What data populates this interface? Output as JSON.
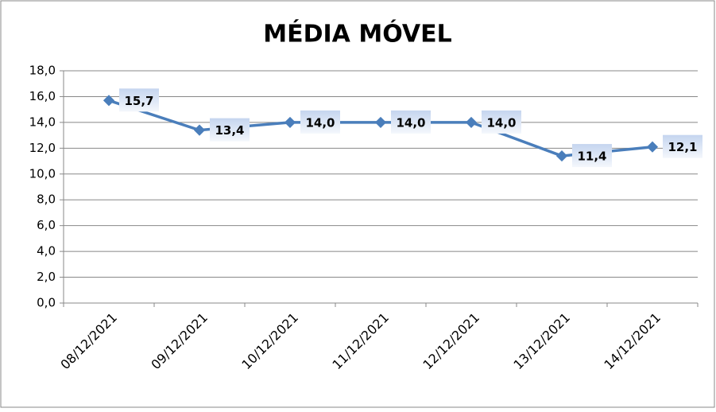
{
  "chart_data": {
    "type": "line",
    "title": "MÉDIA MÓVEL",
    "categories": [
      "08/12/2021",
      "09/12/2021",
      "10/12/2021",
      "11/12/2021",
      "12/12/2021",
      "13/12/2021",
      "14/12/2021"
    ],
    "values": [
      15.7,
      13.4,
      14.0,
      14.0,
      14.0,
      11.4,
      12.1
    ],
    "value_labels": [
      "15,7",
      "13,4",
      "14,0",
      "14,0",
      "14,0",
      "11,4",
      "12,1"
    ],
    "color": "#4a7ebb",
    "ylim": [
      0,
      18
    ],
    "yticks": [
      {
        "value": 0,
        "label": "0,0"
      },
      {
        "value": 2,
        "label": "2,0"
      },
      {
        "value": 4,
        "label": "4,0"
      },
      {
        "value": 6,
        "label": "6,0"
      },
      {
        "value": 8,
        "label": "8,0"
      },
      {
        "value": 10,
        "label": "10,0"
      },
      {
        "value": 12,
        "label": "12,0"
      },
      {
        "value": 14,
        "label": "14,0"
      },
      {
        "value": 16,
        "label": "16,0"
      },
      {
        "value": 18,
        "label": "18,0"
      }
    ],
    "grid": true
  }
}
